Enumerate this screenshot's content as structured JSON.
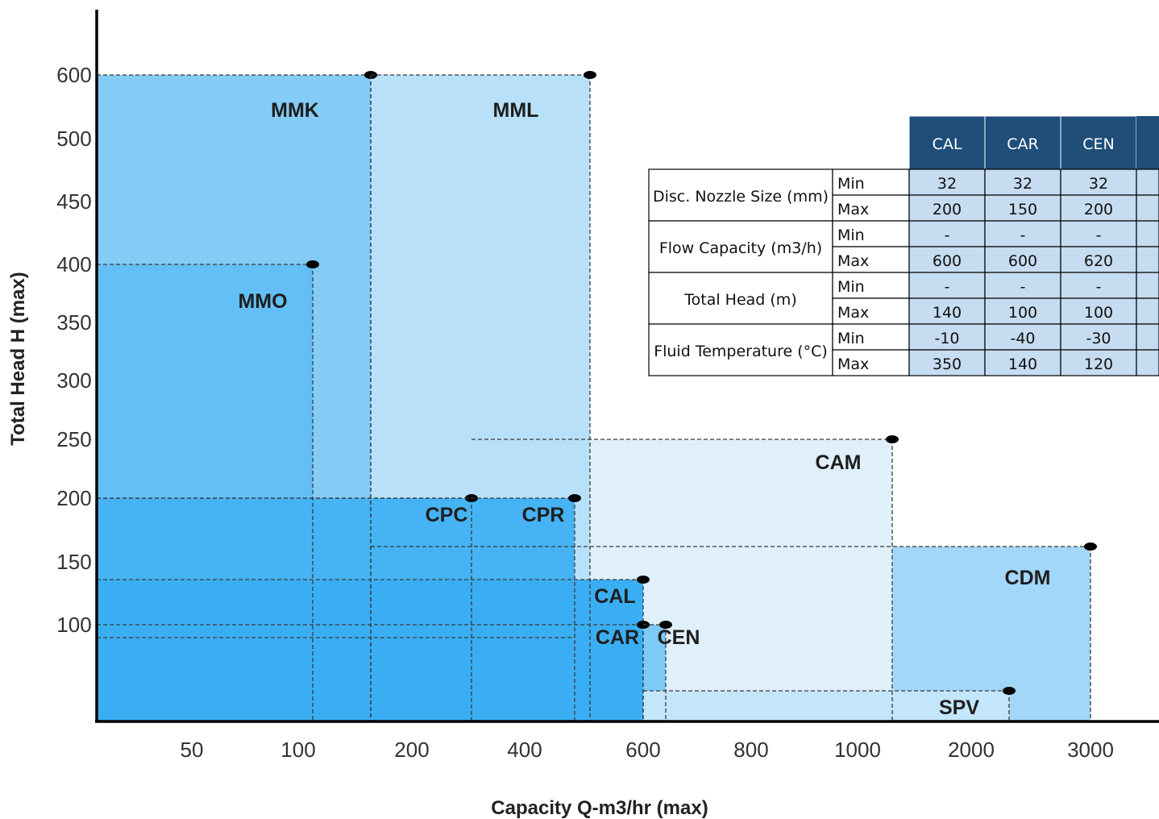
{
  "chart_data": {
    "type": "area",
    "xlabel": "Capacity Q-m3/hr (max)",
    "ylabel": "Total Head H (max)",
    "x_ticks": [
      "50",
      "100",
      "200",
      "400",
      "600",
      "800",
      "1000",
      "2000",
      "3000"
    ],
    "y_ticks": [
      "100",
      "150",
      "200",
      "250",
      "300",
      "350",
      "400",
      "450",
      "500",
      "600"
    ],
    "scale_note": "both axes are non-linear (equal spacing between printed ticks)",
    "series": [
      {
        "name": "MMK",
        "x_max": 150,
        "head_max": 600,
        "color": "#84cbf6"
      },
      {
        "name": "MML",
        "x_max": 500,
        "head_max": 600,
        "color": "#b8e1f9"
      },
      {
        "name": "MMO",
        "x_max": 110,
        "head_max": 400,
        "color": "#63bff5"
      },
      {
        "name": "CAM",
        "x_max": 1300,
        "head_max": 250,
        "color": "#dff0fb"
      },
      {
        "name": "CPC",
        "x_max": 300,
        "head_max": 200,
        "color": "#45b3f4"
      },
      {
        "name": "CPR",
        "x_max": 490,
        "head_max": 200,
        "color": "#45b3f4"
      },
      {
        "name": "CDM",
        "x_max": 3000,
        "head_max": 160,
        "color": "#a3d7f9"
      },
      {
        "name": "CAL",
        "x_max": 600,
        "head_max": 140,
        "color": "#38acf3"
      },
      {
        "name": "CAR",
        "x_max": 600,
        "head_max": 100,
        "color": "#38acf3"
      },
      {
        "name": "CEN",
        "x_max": 620,
        "head_max": 100,
        "color": "#7dcaf7"
      },
      {
        "name": "SPV",
        "x_max": 2300,
        "head_max": 50,
        "color": "#c4e6fa"
      }
    ],
    "inset_table": {
      "columns": [
        "CAL",
        "CAR",
        "CEN"
      ],
      "rows": [
        {
          "param": "Disc. Nozzle Size (mm)",
          "sub": [
            "Min",
            "Max"
          ],
          "values": [
            [
              "32",
              "32",
              "32"
            ],
            [
              "200",
              "150",
              "200"
            ]
          ]
        },
        {
          "param": "Flow Capacity (m3/h)",
          "sub": [
            "Min",
            "Max"
          ],
          "values": [
            [
              "-",
              "-",
              "-"
            ],
            [
              "600",
              "600",
              "620"
            ]
          ]
        },
        {
          "param": "Total Head (m)",
          "sub": [
            "Min",
            "Max"
          ],
          "values": [
            [
              "-",
              "-",
              "-"
            ],
            [
              "140",
              "100",
              "100"
            ]
          ]
        },
        {
          "param": "Fluid Temperature (°C)",
          "sub": [
            "Min",
            "Max"
          ],
          "values": [
            [
              "-10",
              "-40",
              "-30"
            ],
            [
              "350",
              "140",
              "120"
            ]
          ]
        }
      ]
    }
  }
}
